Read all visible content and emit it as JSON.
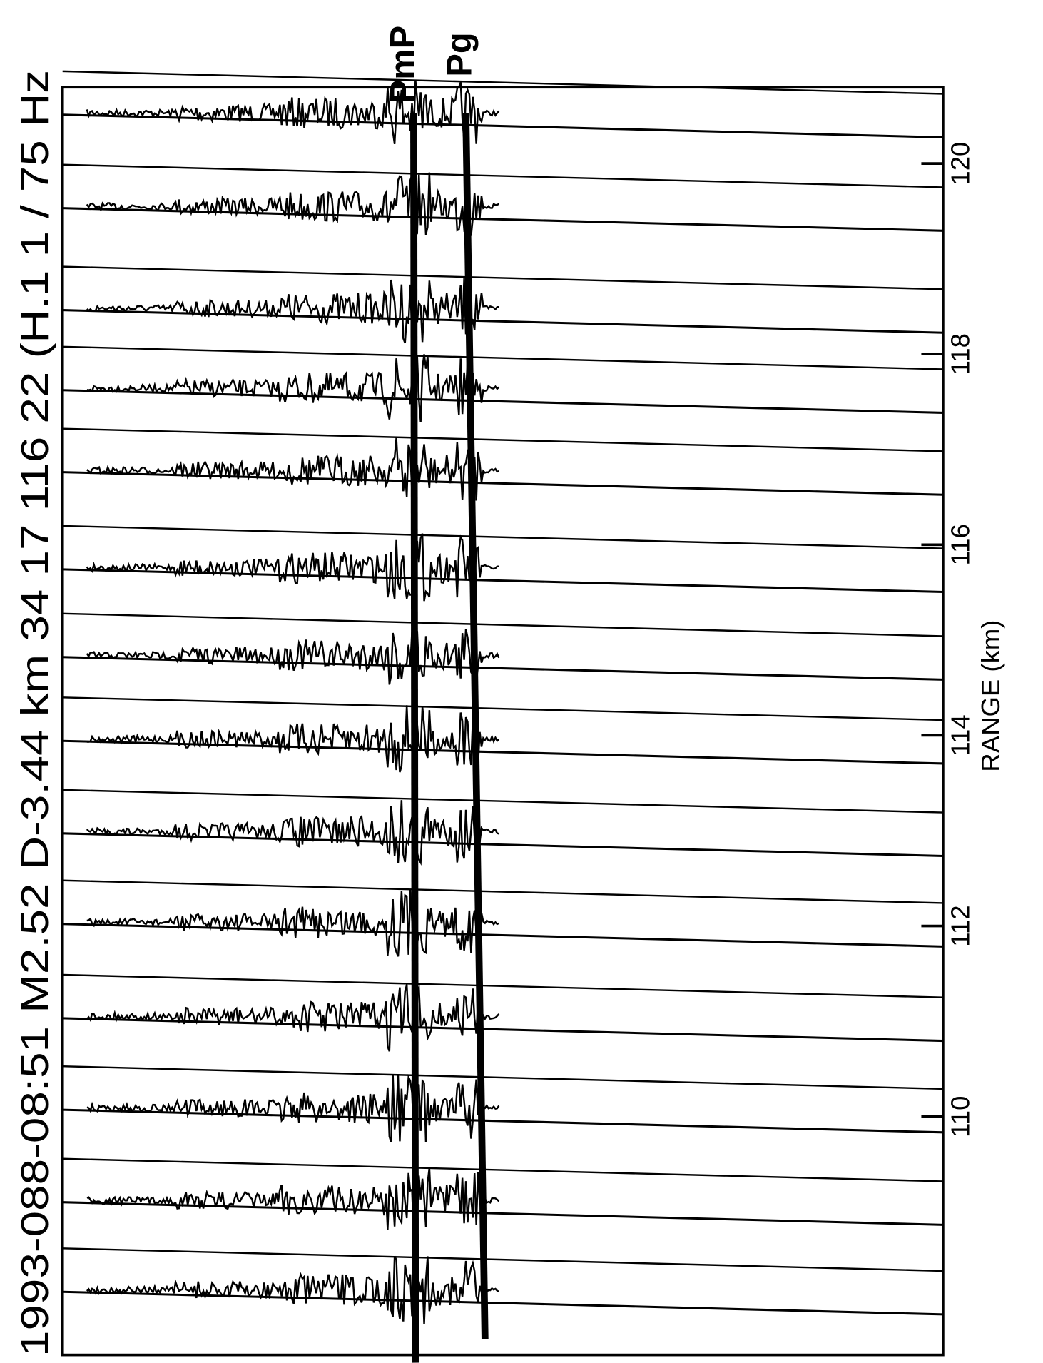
{
  "chart_data": {
    "type": "record_section",
    "title": "1993-088-08:51 M2.52 D-3.44 km 34 17 116 22 (H.1 1 / 75 Hz",
    "ylabel": "RANGE (km)",
    "phases": [
      "PmP",
      "Pg"
    ],
    "ylim": [
      107.5,
      120.8
    ],
    "yticks": [
      110,
      112,
      114,
      116,
      118,
      120
    ],
    "traces": [
      120.53,
      119.55,
      118.48,
      117.64,
      116.78,
      115.76,
      114.84,
      113.96,
      112.99,
      112.04,
      111.05,
      110.09,
      109.12,
      108.18
    ],
    "color": "#000000"
  }
}
